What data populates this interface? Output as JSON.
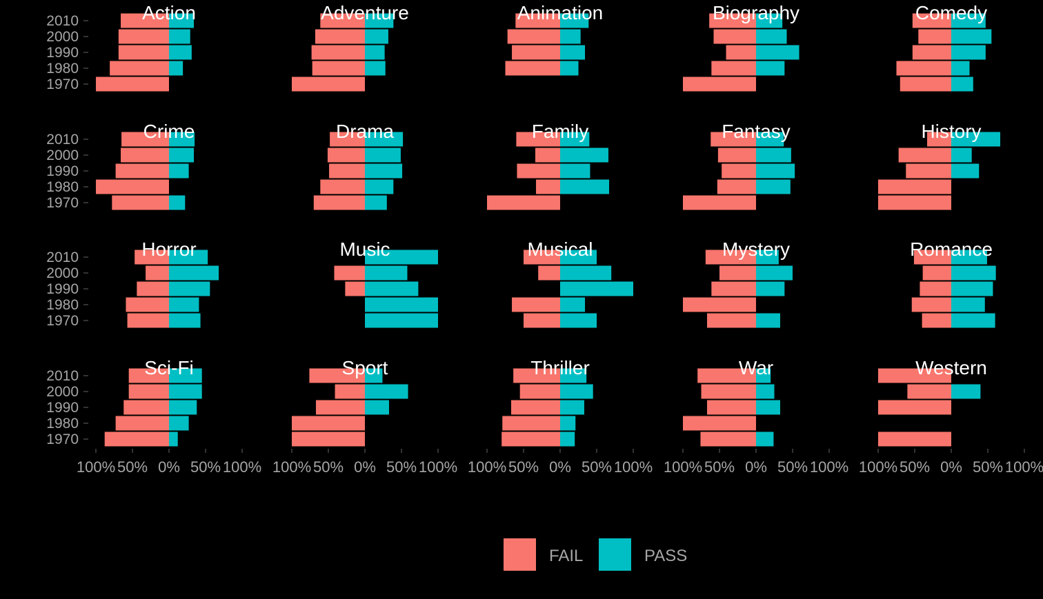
{
  "chart_data": {
    "type": "bar",
    "orientation": "horizontal",
    "layout": "diverging-facets",
    "facet_columns": 5,
    "categories": [
      "2010",
      "2000",
      "1990",
      "1980",
      "1970"
    ],
    "xlim": [
      -100,
      100
    ],
    "x_ticks": [
      -100,
      -50,
      0,
      50,
      100
    ],
    "x_tick_labels": [
      "100%",
      "50%",
      "0%",
      "50%",
      "100%"
    ],
    "grid": false,
    "legend_position": "bottom",
    "series": [
      {
        "name": "FAIL",
        "color": "#F8766D"
      },
      {
        "name": "PASS",
        "color": "#00BFC4"
      }
    ],
    "legend": {
      "items": [
        {
          "label": "FAIL",
          "color": "#F8766D"
        },
        {
          "label": "PASS",
          "color": "#00BFC4"
        }
      ]
    },
    "panels": [
      {
        "title": "Action",
        "fail": [
          66,
          69,
          69,
          81,
          100
        ],
        "pass": [
          34,
          29,
          31,
          19,
          0
        ]
      },
      {
        "title": "Adventure",
        "fail": [
          61,
          68,
          73,
          72,
          100
        ],
        "pass": [
          39,
          32,
          27,
          28,
          0
        ]
      },
      {
        "title": "Animation",
        "fail": [
          61,
          72,
          66,
          75,
          0
        ],
        "pass": [
          39,
          28,
          34,
          25,
          0
        ]
      },
      {
        "title": "Biography",
        "fail": [
          64,
          58,
          41,
          61,
          100
        ],
        "pass": [
          36,
          42,
          59,
          39,
          0
        ]
      },
      {
        "title": "Comedy",
        "fail": [
          53,
          45,
          53,
          75,
          70
        ],
        "pass": [
          47,
          55,
          47,
          25,
          30
        ]
      },
      {
        "title": "Crime",
        "fail": [
          65,
          66,
          73,
          100,
          78
        ],
        "pass": [
          35,
          34,
          27,
          0,
          22
        ]
      },
      {
        "title": "Drama",
        "fail": [
          48,
          51,
          49,
          61,
          70
        ],
        "pass": [
          52,
          49,
          51,
          39,
          30
        ]
      },
      {
        "title": "Family",
        "fail": [
          60,
          34,
          59,
          33,
          100
        ],
        "pass": [
          40,
          66,
          41,
          67,
          0
        ]
      },
      {
        "title": "Fantasy",
        "fail": [
          62,
          52,
          47,
          53,
          100
        ],
        "pass": [
          38,
          48,
          53,
          47,
          0
        ]
      },
      {
        "title": "History",
        "fail": [
          33,
          72,
          62,
          100,
          100
        ],
        "pass": [
          67,
          28,
          38,
          0,
          0
        ]
      },
      {
        "title": "Horror",
        "fail": [
          47,
          32,
          44,
          59,
          57
        ],
        "pass": [
          53,
          68,
          56,
          41,
          43
        ]
      },
      {
        "title": "Music",
        "fail": [
          0,
          42,
          27,
          0,
          0
        ],
        "pass": [
          100,
          58,
          73,
          100,
          100
        ]
      },
      {
        "title": "Musical",
        "fail": [
          50,
          30,
          0,
          66,
          50
        ],
        "pass": [
          50,
          70,
          100,
          34,
          50
        ]
      },
      {
        "title": "Mystery",
        "fail": [
          69,
          50,
          61,
          100,
          67
        ],
        "pass": [
          31,
          50,
          39,
          0,
          33
        ]
      },
      {
        "title": "Romance",
        "fail": [
          51,
          39,
          43,
          54,
          40
        ],
        "pass": [
          49,
          61,
          57,
          46,
          60
        ]
      },
      {
        "title": "Sci-Fi",
        "fail": [
          55,
          55,
          62,
          73,
          88
        ],
        "pass": [
          45,
          45,
          38,
          27,
          12
        ]
      },
      {
        "title": "Sport",
        "fail": [
          76,
          41,
          67,
          100,
          100
        ],
        "pass": [
          24,
          59,
          33,
          0,
          0
        ]
      },
      {
        "title": "Thriller",
        "fail": [
          64,
          55,
          67,
          79,
          80
        ],
        "pass": [
          36,
          45,
          33,
          21,
          20
        ]
      },
      {
        "title": "War",
        "fail": [
          80,
          75,
          67,
          100,
          76
        ],
        "pass": [
          20,
          25,
          33,
          0,
          24
        ]
      },
      {
        "title": "Western",
        "fail": [
          100,
          60,
          100,
          0,
          100
        ],
        "pass": [
          0,
          40,
          0,
          0,
          0
        ]
      }
    ]
  }
}
